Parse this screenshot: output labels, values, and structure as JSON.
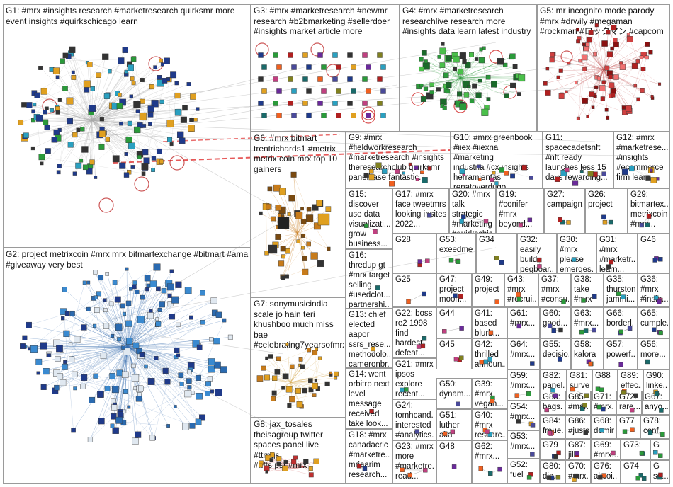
{
  "groups": [
    {
      "id": "G1",
      "label": "G1: #mrx #insights research #marketresearch quirksmr more\nevent insights #quirkschicago learn"
    },
    {
      "id": "G2",
      "label": "G2: project metrixcoin #mrx mrx bitmartexchange #bitmart #ama\n#giveaway very best"
    },
    {
      "id": "G3",
      "label": "G3: #mrx #marketresearch #newmr\nresearch #b2bmarketing #sellerdoer\n#insights market article more"
    },
    {
      "id": "G4",
      "label": "G4: #mrx #marketresearch\nresearchlive research more\n#insights data learn latest industry"
    },
    {
      "id": "G5",
      "label": "G5: mr incognito mode parody\n#mrx #drwily #megaman\n#rockman #ロックマン #capcom"
    },
    {
      "id": "G6",
      "label": "G6: #mrx bitmart\ntrentrichards1 #metrix\nmetrix coin mrx top 10\ngainers"
    },
    {
      "id": "G7",
      "label": "G7: sonymusicindia\nscale jo hain teri\nkhushboo much miss\nbae\n#celebrating7yearsofmrx"
    },
    {
      "id": "G8",
      "label": "G8: jax_tosales\ntheisagroup twitter\nspaces panel live #ttrpgs\n#nfts pst #mrx"
    },
    {
      "id": "G9",
      "label": "G9: #mrx\n#fieldworkresearch\n#marketresearch #insights\ntheresearchclub quirksmr\npanelbase fantastic..."
    },
    {
      "id": "G10",
      "label": "G10: #mrx greenbook\n#iiex #iiexna #marketing\nindustria #cx insights\nherramientas\nrenatoverdugo"
    },
    {
      "id": "G11",
      "label": "G11:\nspacecadetsnft\n#nft ready\nlaunches less 15\ndays rewarding..."
    },
    {
      "id": "G12",
      "label": "G12: #mrx\n#marketrese...\n#insights\n#ecommerce\nfirm learn..."
    },
    {
      "id": "G15",
      "label": "G15:\ndiscover\nuse data\nvisualizati...\ngrow\nbusiness..."
    },
    {
      "id": "G16",
      "label": "G16:\nthredup gt\n#mrx target\nselling\n#usedclot...\npartnershi..."
    },
    {
      "id": "G13",
      "label": "G13: chief\nelected\naapor\nssrs_rese...\nmethodolo...\ncameronbr..."
    },
    {
      "id": "G14",
      "label": "G14: went\norbitrp next\nlevel\nmessage\nreceived\ntake look..."
    },
    {
      "id": "G18",
      "label": "G18: #mrx\ncanadacric\n#marketre...\nmriaarim\nresearch..."
    },
    {
      "id": "G17",
      "label": "G17: #mrx\nface tweetmrs\nlooking insites\n2022..."
    },
    {
      "id": "G20",
      "label": "G20: #mrx\ntalk strategic\n#marketing\n#quirkschic..."
    },
    {
      "id": "G19",
      "label": "G19:\n#conifer\n#mrx\nbeyond..."
    },
    {
      "id": "G27",
      "label": "G27:\ncampaign..."
    },
    {
      "id": "G26",
      "label": "G26:\nproject"
    },
    {
      "id": "G29",
      "label": "G29:\nbitmartex...\nmetrixcoin\n#mrx..."
    },
    {
      "id": "G28",
      "label": "G28"
    },
    {
      "id": "G53",
      "label": "G53:\nexeedme"
    },
    {
      "id": "G34",
      "label": "G34"
    },
    {
      "id": "G32",
      "label": "G32:\neasily\nbuild\npegboar..."
    },
    {
      "id": "G30",
      "label": "G30: #mrx\nplease\nemerges...\n(stop..."
    },
    {
      "id": "G31",
      "label": "G31:\n#mrx\n#marketr...\nlearn..."
    },
    {
      "id": "G46",
      "label": "G46"
    },
    {
      "id": "G25",
      "label": "G25"
    },
    {
      "id": "G47",
      "label": "G47:\nproject\nmoon..."
    },
    {
      "id": "G49",
      "label": "G49:\nproject"
    },
    {
      "id": "G43",
      "label": "G43:\n#mrx\n#recrui..."
    },
    {
      "id": "G37",
      "label": "G37:\n#mrx\n#consu..."
    },
    {
      "id": "G38",
      "label": "G38:\ntake\n#mrx"
    },
    {
      "id": "G35",
      "label": "G35:\nthurston\njammi..."
    },
    {
      "id": "G36",
      "label": "G36:\n#mrx\n#insig..."
    },
    {
      "id": "G22",
      "label": "G22: boss\nre2 1998\nfind hardest\ndefeat..."
    },
    {
      "id": "G44",
      "label": "G44"
    },
    {
      "id": "G41",
      "label": "G41:\nbased\nblurb..."
    },
    {
      "id": "G61",
      "label": "G61:\n#mrx..."
    },
    {
      "id": "G60",
      "label": "G60:\ngood..."
    },
    {
      "id": "G63",
      "label": "G63:\n#mrx..."
    },
    {
      "id": "G66",
      "label": "G66:\nborderl..."
    },
    {
      "id": "G65",
      "label": "G65:\ncumple..."
    },
    {
      "id": "G45",
      "label": "G45"
    },
    {
      "id": "G42",
      "label": "G42:\nthrilled\nannoun..."
    },
    {
      "id": "G64",
      "label": "G64:\n#mrx..."
    },
    {
      "id": "G55",
      "label": "G55:\ndecisio..."
    },
    {
      "id": "G58",
      "label": "G58:\nkalora"
    },
    {
      "id": "G57",
      "label": "G57:\npowerf..."
    },
    {
      "id": "G56",
      "label": "G56:\nmore..."
    },
    {
      "id": "G21",
      "label": "G21: #mrx\nipsos\nexplore\nrecent..."
    },
    {
      "id": "G59",
      "label": "G59:\n#mrx..."
    },
    {
      "id": "G82",
      "label": "G82:\npanel..."
    },
    {
      "id": "G81",
      "label": "G81:\nsurve..."
    },
    {
      "id": "G88",
      "label": "G88"
    },
    {
      "id": "G89",
      "label": "G89:\neffec..."
    },
    {
      "id": "G90",
      "label": "G90:\nlinke..."
    },
    {
      "id": "G50",
      "label": "G50:\ndynam..."
    },
    {
      "id": "G39",
      "label": "G39:\n#mrx\nvegan..."
    },
    {
      "id": "G54",
      "label": "G54:\n#mrx..."
    },
    {
      "id": "G83",
      "label": "G83:\nbags..."
    },
    {
      "id": "G85",
      "label": "G85:\n#mar..."
    },
    {
      "id": "G71",
      "label": "G71:\n#mrx..."
    },
    {
      "id": "G72",
      "label": "G72:\nrare..."
    },
    {
      "id": "G67",
      "label": "G67:\nanyo..."
    },
    {
      "id": "G24",
      "label": "G24:\ntomhcand...\ninterested\n#analytics..."
    },
    {
      "id": "G51",
      "label": "G51:\nluther\naka mr..."
    },
    {
      "id": "G40",
      "label": "G40:\n#mrx\nresearc..."
    },
    {
      "id": "G53b",
      "label": "G53:\n#mrx..."
    },
    {
      "id": "G84",
      "label": "G84:\nfreue..."
    },
    {
      "id": "G86",
      "label": "G86:\n#justs..."
    },
    {
      "id": "G68",
      "label": "G68:\ndomin..."
    },
    {
      "id": "G77",
      "label": "G77"
    },
    {
      "id": "G78",
      "label": "G78:\nconf..."
    },
    {
      "id": "G23",
      "label": "G23: #mrx\nmore\n#marketre...\nread..."
    },
    {
      "id": "G48",
      "label": "G48"
    },
    {
      "id": "G62",
      "label": "G62:\n#mrx..."
    },
    {
      "id": "G52",
      "label": "G52:\nfuel"
    },
    {
      "id": "G79",
      "label": "G79"
    },
    {
      "id": "G87",
      "label": "G87:\njill"
    },
    {
      "id": "G69",
      "label": "G69:\n#mrx..."
    },
    {
      "id": "G73",
      "label": "G73:"
    },
    {
      "id": "G",
      "label": "G"
    },
    {
      "id": "G80",
      "label": "G80:\ndie..."
    },
    {
      "id": "G70",
      "label": "G70:\n#mrx..."
    },
    {
      "id": "G76",
      "label": "G76:\naltcoi..."
    },
    {
      "id": "G74",
      "label": "G74"
    },
    {
      "id": "G75",
      "label": "G\nso..."
    }
  ],
  "colors": {
    "border": "#9a9a9a",
    "edge": "#a8a8a8",
    "edge_red": "#e03030",
    "g2_edge": "#3a6fb0",
    "g6_edge": "#c77b1a",
    "g4_node": "#2a9a3a",
    "g5_node": "#b02020",
    "g3_node": "#2a7a6a"
  }
}
